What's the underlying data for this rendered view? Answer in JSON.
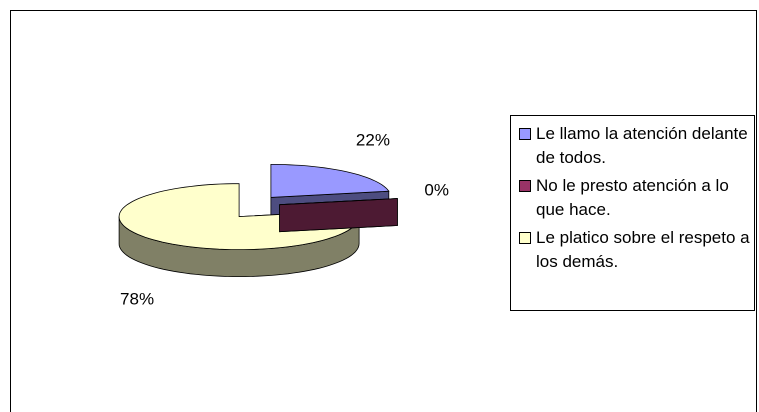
{
  "chart_data": {
    "type": "pie3d",
    "categories": [
      "Le llamo la atención delante de todos.",
      "No le presto atención a lo que hace.",
      "Le platico sobre el respeto a los demás."
    ],
    "values": [
      22,
      0,
      78
    ],
    "value_labels": [
      "22%",
      "0%",
      "78%"
    ],
    "colors": [
      "#9999ff",
      "#993366",
      "#ffffcc"
    ],
    "side_colors": [
      "#4d4d80",
      "#4d1a33",
      "#808066"
    ],
    "exploded": true,
    "legend": "right"
  }
}
